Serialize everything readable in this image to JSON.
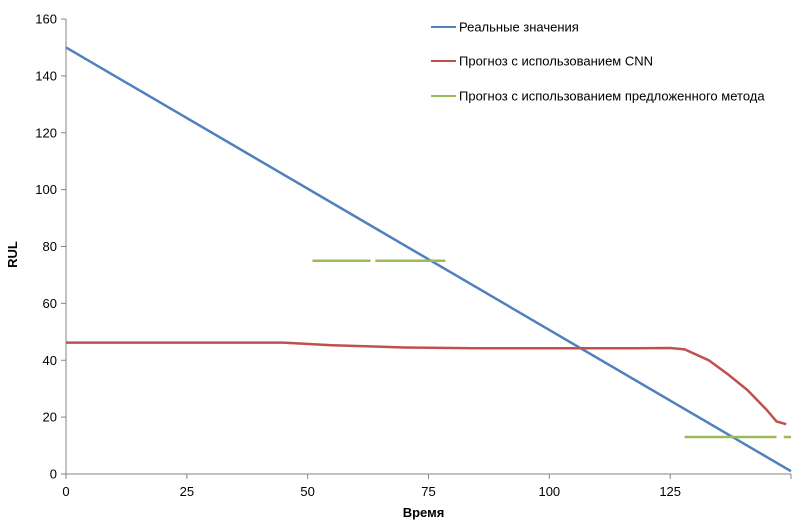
{
  "chart_data": {
    "type": "line",
    "title": "",
    "xlabel": "Время",
    "ylabel": "RUL",
    "xlim": [
      0,
      150
    ],
    "ylim": [
      0,
      160
    ],
    "x_ticks": [
      "0",
      "25",
      "50",
      "75",
      "100",
      "125"
    ],
    "y_ticks": [
      "0",
      "20",
      "40",
      "60",
      "80",
      "100",
      "120",
      "140",
      "160"
    ],
    "grid": false,
    "legend_position": "top-right",
    "series": [
      {
        "name": "Реальные значения",
        "color": "#4F81BD",
        "points": [
          [
            0,
            150
          ],
          [
            150,
            1
          ]
        ]
      },
      {
        "name": "Прогноз с использованием CNN",
        "color": "#C0504D",
        "points": [
          [
            0,
            46.2
          ],
          [
            45,
            46.2
          ],
          [
            55,
            45.3
          ],
          [
            70,
            44.5
          ],
          [
            85,
            44.2
          ],
          [
            115,
            44.2
          ],
          [
            125,
            44.3
          ],
          [
            128,
            43.8
          ],
          [
            133,
            40
          ],
          [
            137,
            35
          ],
          [
            141,
            29.5
          ],
          [
            145,
            22.5
          ],
          [
            147,
            18.5
          ],
          [
            149,
            17.5
          ]
        ]
      },
      {
        "name": "Прогноз с использованием предложенного метода",
        "color": "#9BBB59",
        "segments": [
          [
            [
              51,
              75
            ],
            [
              63,
              75
            ]
          ],
          [
            [
              64,
              75
            ],
            [
              78.5,
              75
            ]
          ],
          [
            [
              128,
              13
            ],
            [
              147,
              13
            ]
          ],
          [
            [
              148.5,
              13
            ],
            [
              150,
              13
            ]
          ]
        ]
      }
    ]
  }
}
